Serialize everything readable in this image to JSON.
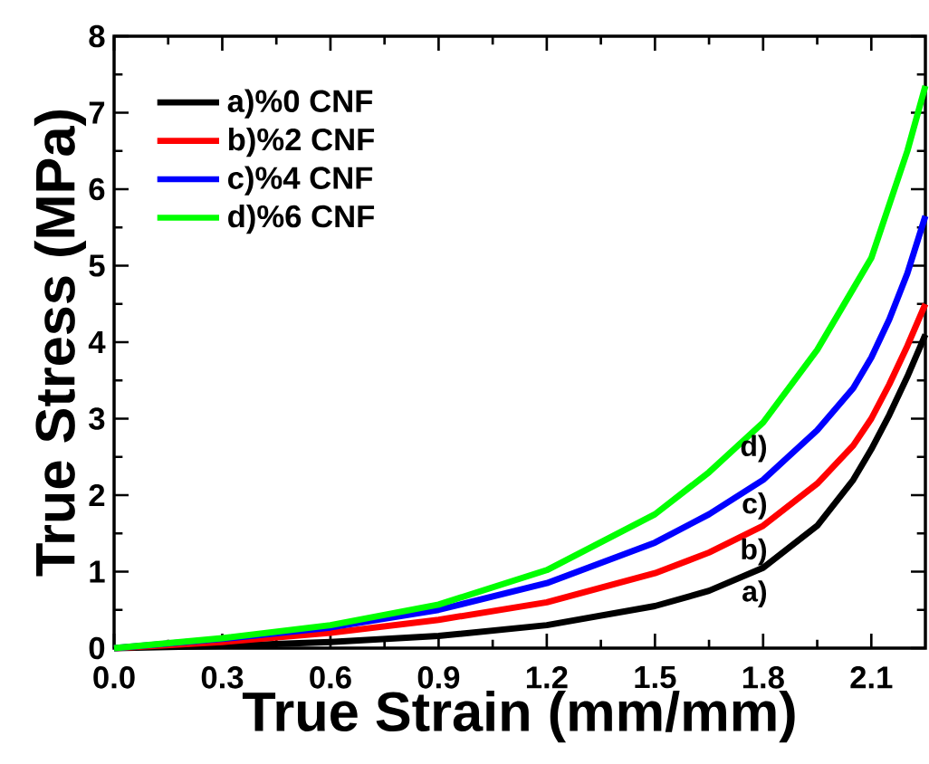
{
  "chart_data": {
    "type": "line",
    "xlabel": "True Strain (mm/mm)",
    "ylabel": "True Stress (MPa)",
    "xlim": [
      0,
      2.25
    ],
    "ylim": [
      0,
      8
    ],
    "xticks": [
      {
        "value": 0,
        "label": "0.0"
      },
      0.3,
      0.6,
      0.9,
      1.2,
      1.5,
      1.8,
      2.1
    ],
    "yticks": [
      0,
      1,
      2,
      3,
      4,
      5,
      6,
      7,
      8
    ],
    "x": [
      0,
      0.3,
      0.6,
      0.9,
      1.2,
      1.5,
      1.65,
      1.8,
      1.95,
      2.05,
      2.1,
      2.15,
      2.2,
      2.25
    ],
    "series": [
      {
        "name": "a)%0 CNF",
        "color": "#000000",
        "values": [
          0,
          0.03,
          0.08,
          0.16,
          0.3,
          0.55,
          0.75,
          1.05,
          1.6,
          2.2,
          2.6,
          3.05,
          3.55,
          4.1
        ]
      },
      {
        "name": "b)%2 CNF",
        "color": "#ff0000",
        "values": [
          0,
          0.08,
          0.2,
          0.37,
          0.6,
          0.98,
          1.25,
          1.6,
          2.15,
          2.65,
          3.0,
          3.45,
          3.95,
          4.5
        ]
      },
      {
        "name": "c)%4 CNF",
        "color": "#0000ff",
        "values": [
          0,
          0.12,
          0.27,
          0.5,
          0.85,
          1.38,
          1.75,
          2.2,
          2.85,
          3.4,
          3.8,
          4.3,
          4.9,
          5.65
        ]
      },
      {
        "name": "d)%6 CNF",
        "color": "#00ff00",
        "values": [
          0,
          0.13,
          0.3,
          0.57,
          1.02,
          1.75,
          2.3,
          2.95,
          3.9,
          4.7,
          5.1,
          5.8,
          6.5,
          7.35
        ]
      }
    ],
    "annotations": [
      "a)",
      "b)",
      "c)",
      "d)"
    ],
    "legend": "top left"
  }
}
